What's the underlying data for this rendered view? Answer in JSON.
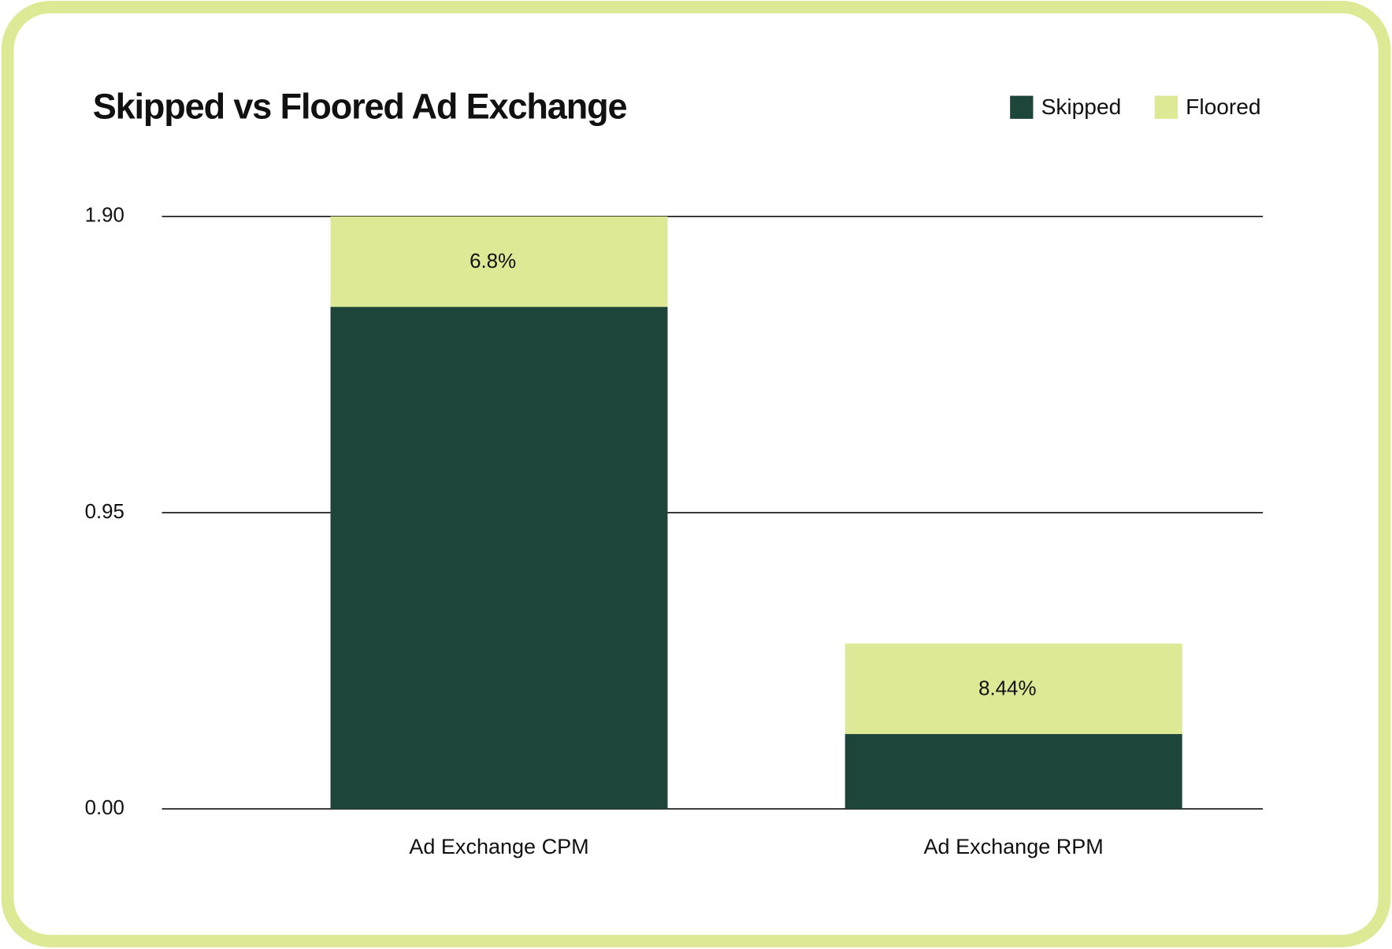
{
  "chart_data": {
    "type": "stacked_bar",
    "title": "Skipped  vs Floored Ad Exchange",
    "categories": [
      "Ad Exchange CPM",
      "Ad Exchange RPM"
    ],
    "series": [
      {
        "name": "Skipped",
        "color": "#1d4539",
        "values": [
          1.61,
          0.24
        ]
      },
      {
        "name": "Floored",
        "color": "#dde994",
        "values": [
          0.29,
          0.29
        ]
      }
    ],
    "annotations": [
      "6.8%",
      "8.44%"
    ],
    "ylim": [
      0,
      1.9
    ],
    "yticks": [
      {
        "value": 0,
        "label": "0.00"
      },
      {
        "value": 0.95,
        "label": "0.95"
      },
      {
        "value": 1.9,
        "label": "1.90"
      }
    ],
    "grid": true,
    "legend": "top-right"
  }
}
